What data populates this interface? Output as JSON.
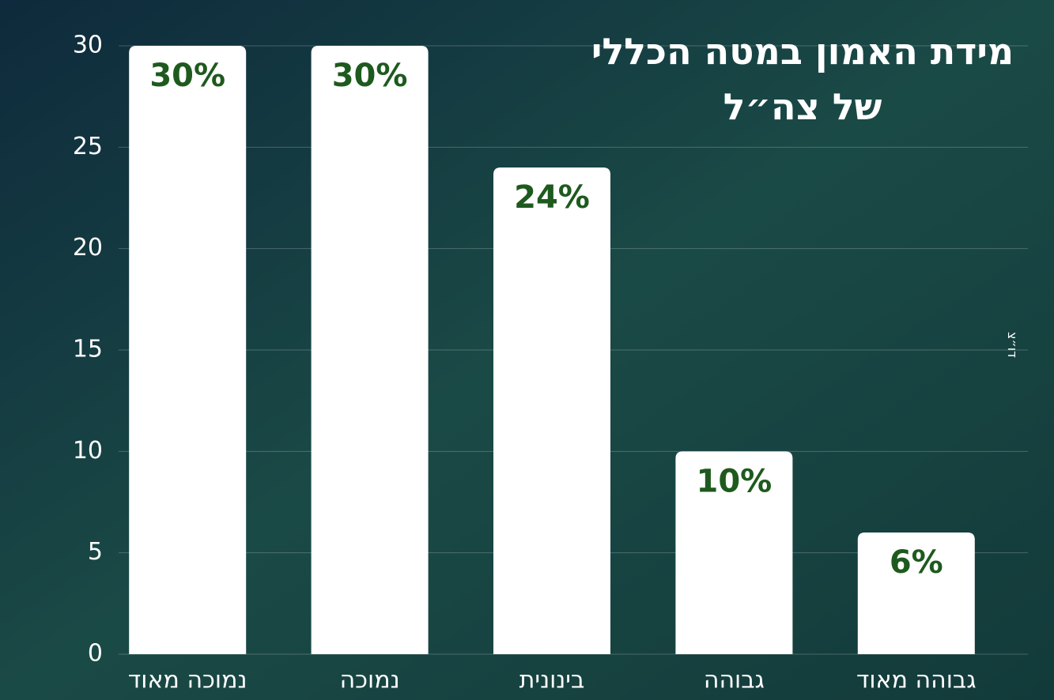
{
  "chart_data": {
    "type": "bar",
    "title": "מידת האמון במטה הכללי של צה״ל",
    "credit": "דו״צ",
    "categories": [
      "נמוכה מאוד",
      "נמוכה",
      "בינונית",
      "גבוהה",
      "גבוהה מאוד"
    ],
    "values": [
      30,
      30,
      24,
      10,
      6
    ],
    "value_labels": [
      "30%",
      "30%",
      "24%",
      "10%",
      "6%"
    ],
    "color": "#ffffff",
    "label_color": "#1e5a1e",
    "ylim": [
      0,
      30
    ],
    "yticks": [
      0,
      5,
      10,
      15,
      20,
      25,
      30
    ],
    "grid": true
  }
}
